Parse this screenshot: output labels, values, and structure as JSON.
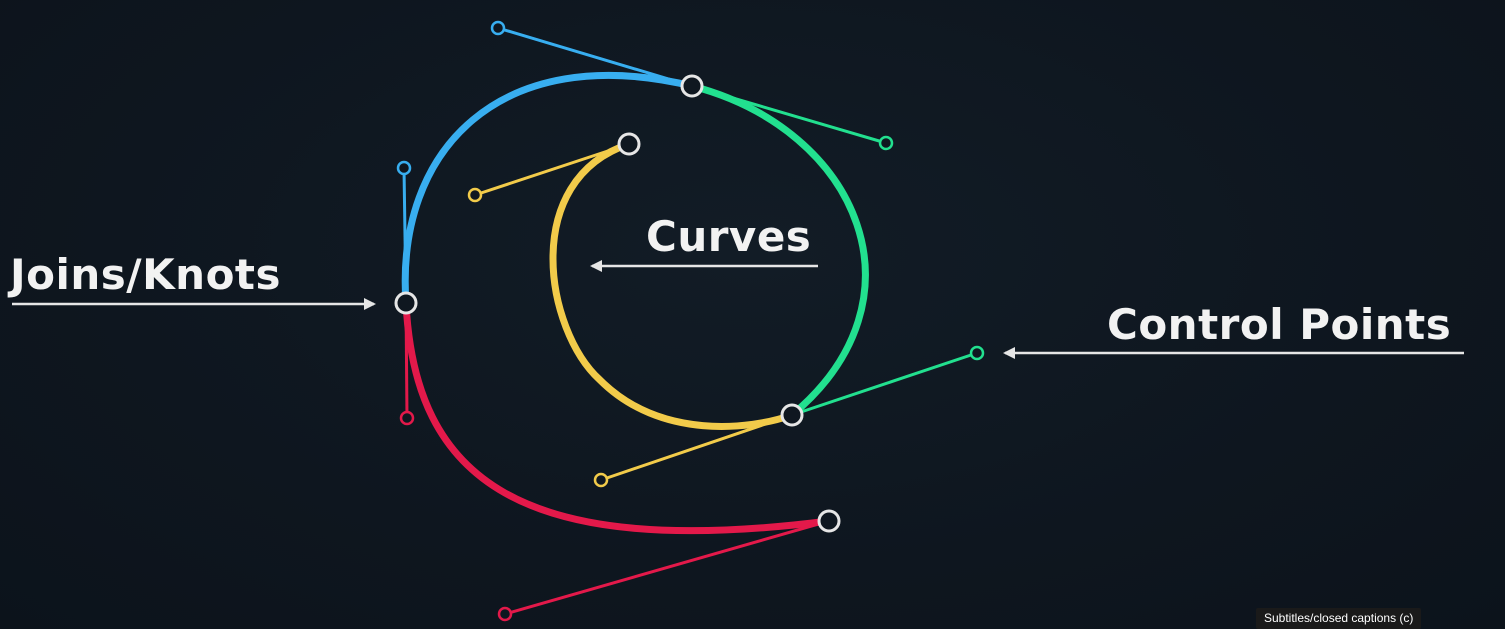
{
  "labels": {
    "curves": "Curves",
    "joins_knots": "Joins/Knots",
    "control_points": "Control Points"
  },
  "captions_badge": "Subtitles/closed captions (c)",
  "colors": {
    "background": "#0f1720",
    "blue_segment": "#38aef0",
    "green_segment": "#22e08f",
    "yellow_segment": "#f2cb4a",
    "red_segment": "#e3194a",
    "knot_stroke": "#e6e6e6",
    "arrow": "#e6e6e6"
  }
}
